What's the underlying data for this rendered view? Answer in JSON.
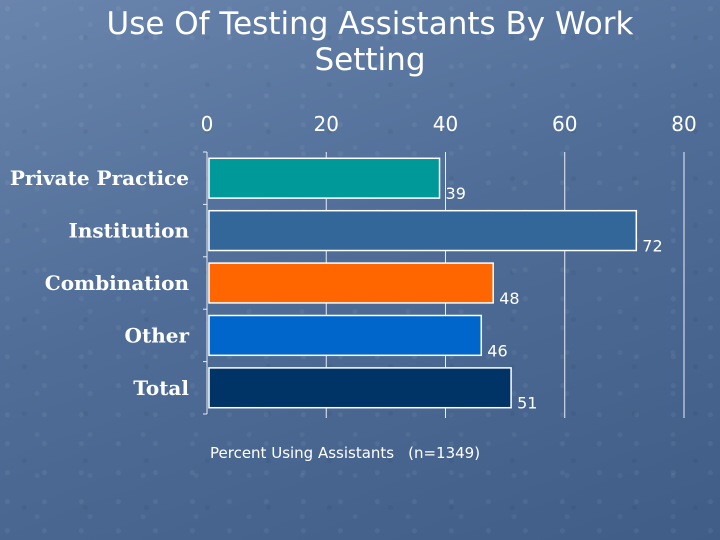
{
  "title_line1": "Use Of Testing Assistants By Work",
  "title_line2": "Setting",
  "chart_data": {
    "type": "bar",
    "orientation": "horizontal",
    "categories": [
      "Private Practice",
      "Institution",
      "Combination",
      "Other",
      "Total"
    ],
    "values": [
      39,
      72,
      48,
      46,
      51
    ],
    "data_labels": [
      "39",
      "72",
      "48",
      "46",
      "51"
    ],
    "colors": [
      "#009999",
      "#336699",
      "#ff6600",
      "#0066cc",
      "#003366"
    ],
    "xlim": [
      0,
      80
    ],
    "x_ticks": [
      "0",
      "20",
      "40",
      "60",
      "80"
    ],
    "x_tick_values": [
      0,
      20,
      40,
      60,
      80
    ],
    "x_axis_position": "top",
    "gridlines": true,
    "xlabel": "Percent Using Assistants",
    "note": "(n=1349)"
  }
}
